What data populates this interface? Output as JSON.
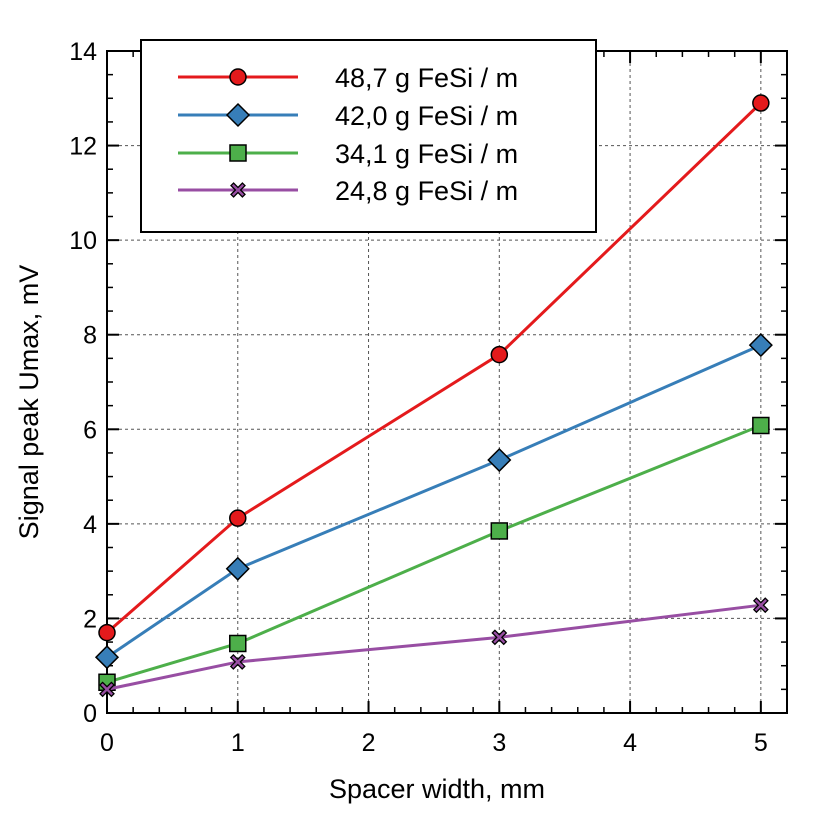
{
  "chart_data": {
    "type": "line",
    "xlabel": "Spacer width, mm",
    "ylabel": "Signal peak Umax, mV",
    "xlim": [
      0,
      5.2
    ],
    "ylim": [
      0,
      14
    ],
    "x_ticks": [
      "0",
      "1",
      "2",
      "3",
      "4",
      "5"
    ],
    "y_ticks": [
      "0",
      "2",
      "4",
      "6",
      "8",
      "10",
      "12",
      "14"
    ],
    "grid": true,
    "legend_position": "top-left",
    "series": [
      {
        "name": "48,7 g FeSi / m",
        "color": "#e41a1c",
        "marker": "circle",
        "x": [
          0,
          1,
          3,
          5
        ],
        "y": [
          1.7,
          4.12,
          7.58,
          12.9
        ]
      },
      {
        "name": "42,0 g FeSi / m",
        "color": "#377eb8",
        "marker": "diamond",
        "x": [
          0,
          1,
          3,
          5
        ],
        "y": [
          1.18,
          3.05,
          5.35,
          7.78
        ]
      },
      {
        "name": "34,1 g FeSi / m",
        "color": "#4daf4a",
        "marker": "square",
        "x": [
          0,
          1,
          3,
          5
        ],
        "y": [
          0.65,
          1.47,
          3.85,
          6.08
        ]
      },
      {
        "name": "24,8 g FeSi / m",
        "color": "#984ea3",
        "marker": "x",
        "x": [
          0,
          1,
          3,
          5
        ],
        "y": [
          0.5,
          1.08,
          1.6,
          2.28
        ]
      }
    ]
  }
}
